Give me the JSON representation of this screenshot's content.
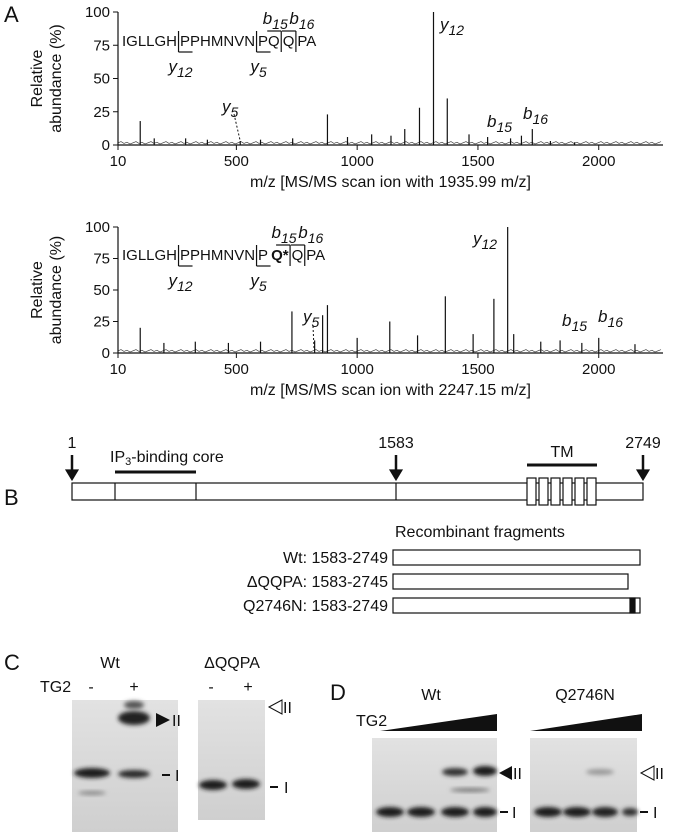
{
  "panel_a": {
    "label": "A"
  },
  "chart_data": [
    {
      "type": "bar",
      "ylabel": [
        "Relative",
        "abundance (%)"
      ],
      "xlabel": "m/z [MS/MS scan ion with 1935.99 m/z]",
      "xlim": [
        10,
        2266
      ],
      "xticks": [
        10,
        500,
        1000,
        1500,
        2000
      ],
      "ylim": [
        0,
        100
      ],
      "yticks": [
        0,
        25,
        50,
        75,
        100
      ],
      "color": "#111111",
      "x": [
        102,
        160,
        290,
        380,
        516,
        600,
        733,
        877,
        960,
        1060,
        1140,
        1197,
        1258,
        1316,
        1373,
        1463,
        1540,
        1635,
        1680,
        1725,
        1800,
        1900
      ],
      "values": [
        18,
        5,
        5,
        4,
        3,
        4,
        5,
        23,
        6,
        8,
        7,
        12,
        28,
        100,
        35,
        8,
        6,
        5,
        7,
        12,
        3,
        2
      ],
      "peptide": [
        {
          "text": "IGLLGH"
        },
        {
          "text": "PPHMNVN"
        },
        {
          "text": "PQ"
        },
        {
          "text": "Q"
        },
        {
          "text": "PA"
        }
      ],
      "ions": [
        {
          "ion": "y",
          "sub": "12"
        },
        {
          "ion": "y",
          "sub": "5"
        },
        {
          "ion": "b",
          "sub": "15"
        },
        {
          "ion": "b",
          "sub": "16"
        },
        {
          "ion": "y",
          "sub": "12"
        },
        {
          "ion": "y",
          "sub": "5"
        },
        {
          "ion": "b",
          "sub": "15"
        },
        {
          "ion": "b",
          "sub": "16"
        }
      ]
    },
    {
      "type": "bar",
      "ylabel": [
        "Relative",
        "abundance (%)"
      ],
      "xlabel": "m/z [MS/MS scan ion with 2247.15 m/z]",
      "xlim": [
        10,
        2266
      ],
      "xticks": [
        10,
        500,
        1000,
        1500,
        2000
      ],
      "ylim": [
        0,
        100
      ],
      "yticks": [
        0,
        25,
        50,
        75,
        100
      ],
      "color": "#111111",
      "x": [
        102,
        200,
        330,
        467,
        600,
        730,
        824,
        857,
        877,
        1000,
        1135,
        1250,
        1365,
        1480,
        1566,
        1623,
        1648,
        1760,
        1840,
        1930,
        2000,
        2150
      ],
      "values": [
        20,
        8,
        9,
        8,
        9,
        33,
        10,
        30,
        38,
        12,
        25,
        14,
        45,
        15,
        43,
        100,
        15,
        9,
        10,
        8,
        12,
        7
      ],
      "peptide": [
        {
          "text": "IGLLGH"
        },
        {
          "text": "PPHMNVN"
        },
        {
          "text": "P"
        },
        {
          "text": "Q*",
          "color": "#c0272d"
        },
        {
          "text": "Q"
        },
        {
          "text": "PA"
        }
      ],
      "ions": [
        {
          "ion": "y",
          "sub": "12"
        },
        {
          "ion": "y",
          "sub": "5"
        },
        {
          "ion": "b",
          "sub": "15"
        },
        {
          "ion": "b",
          "sub": "16"
        },
        {
          "ion": "y",
          "sub": "12"
        },
        {
          "ion": "y",
          "sub": "5"
        },
        {
          "ion": "b",
          "sub": "15"
        },
        {
          "ion": "b",
          "sub": "16"
        }
      ]
    }
  ],
  "panel_b": {
    "label": "B",
    "positions": [
      "1",
      "1583",
      "2749"
    ],
    "core": {
      "pre": "IP",
      "sub": "3",
      "post": "-binding core"
    },
    "tm": "TM",
    "fragments_title": "Recombinant fragments",
    "fragments": [
      "Wt: 1583-2749",
      "ΔQQPA: 1583-2745",
      "Q2746N: 1583-2749"
    ]
  },
  "panel_c": {
    "label": "C",
    "tg2": "TG2",
    "gels": [
      {
        "title": "Wt",
        "lanes": [
          "-",
          "+"
        ],
        "upper": "II",
        "lower": "I"
      },
      {
        "title": "ΔQQPA",
        "lanes": [
          "-",
          "+"
        ],
        "upper": "II",
        "lower": "I"
      }
    ]
  },
  "panel_d": {
    "label": "D",
    "tg2": "TG2",
    "gels": [
      {
        "title": "Wt",
        "upper": "II",
        "lower": "I"
      },
      {
        "title": "Q2746N",
        "upper": "II",
        "lower": "I"
      }
    ]
  }
}
